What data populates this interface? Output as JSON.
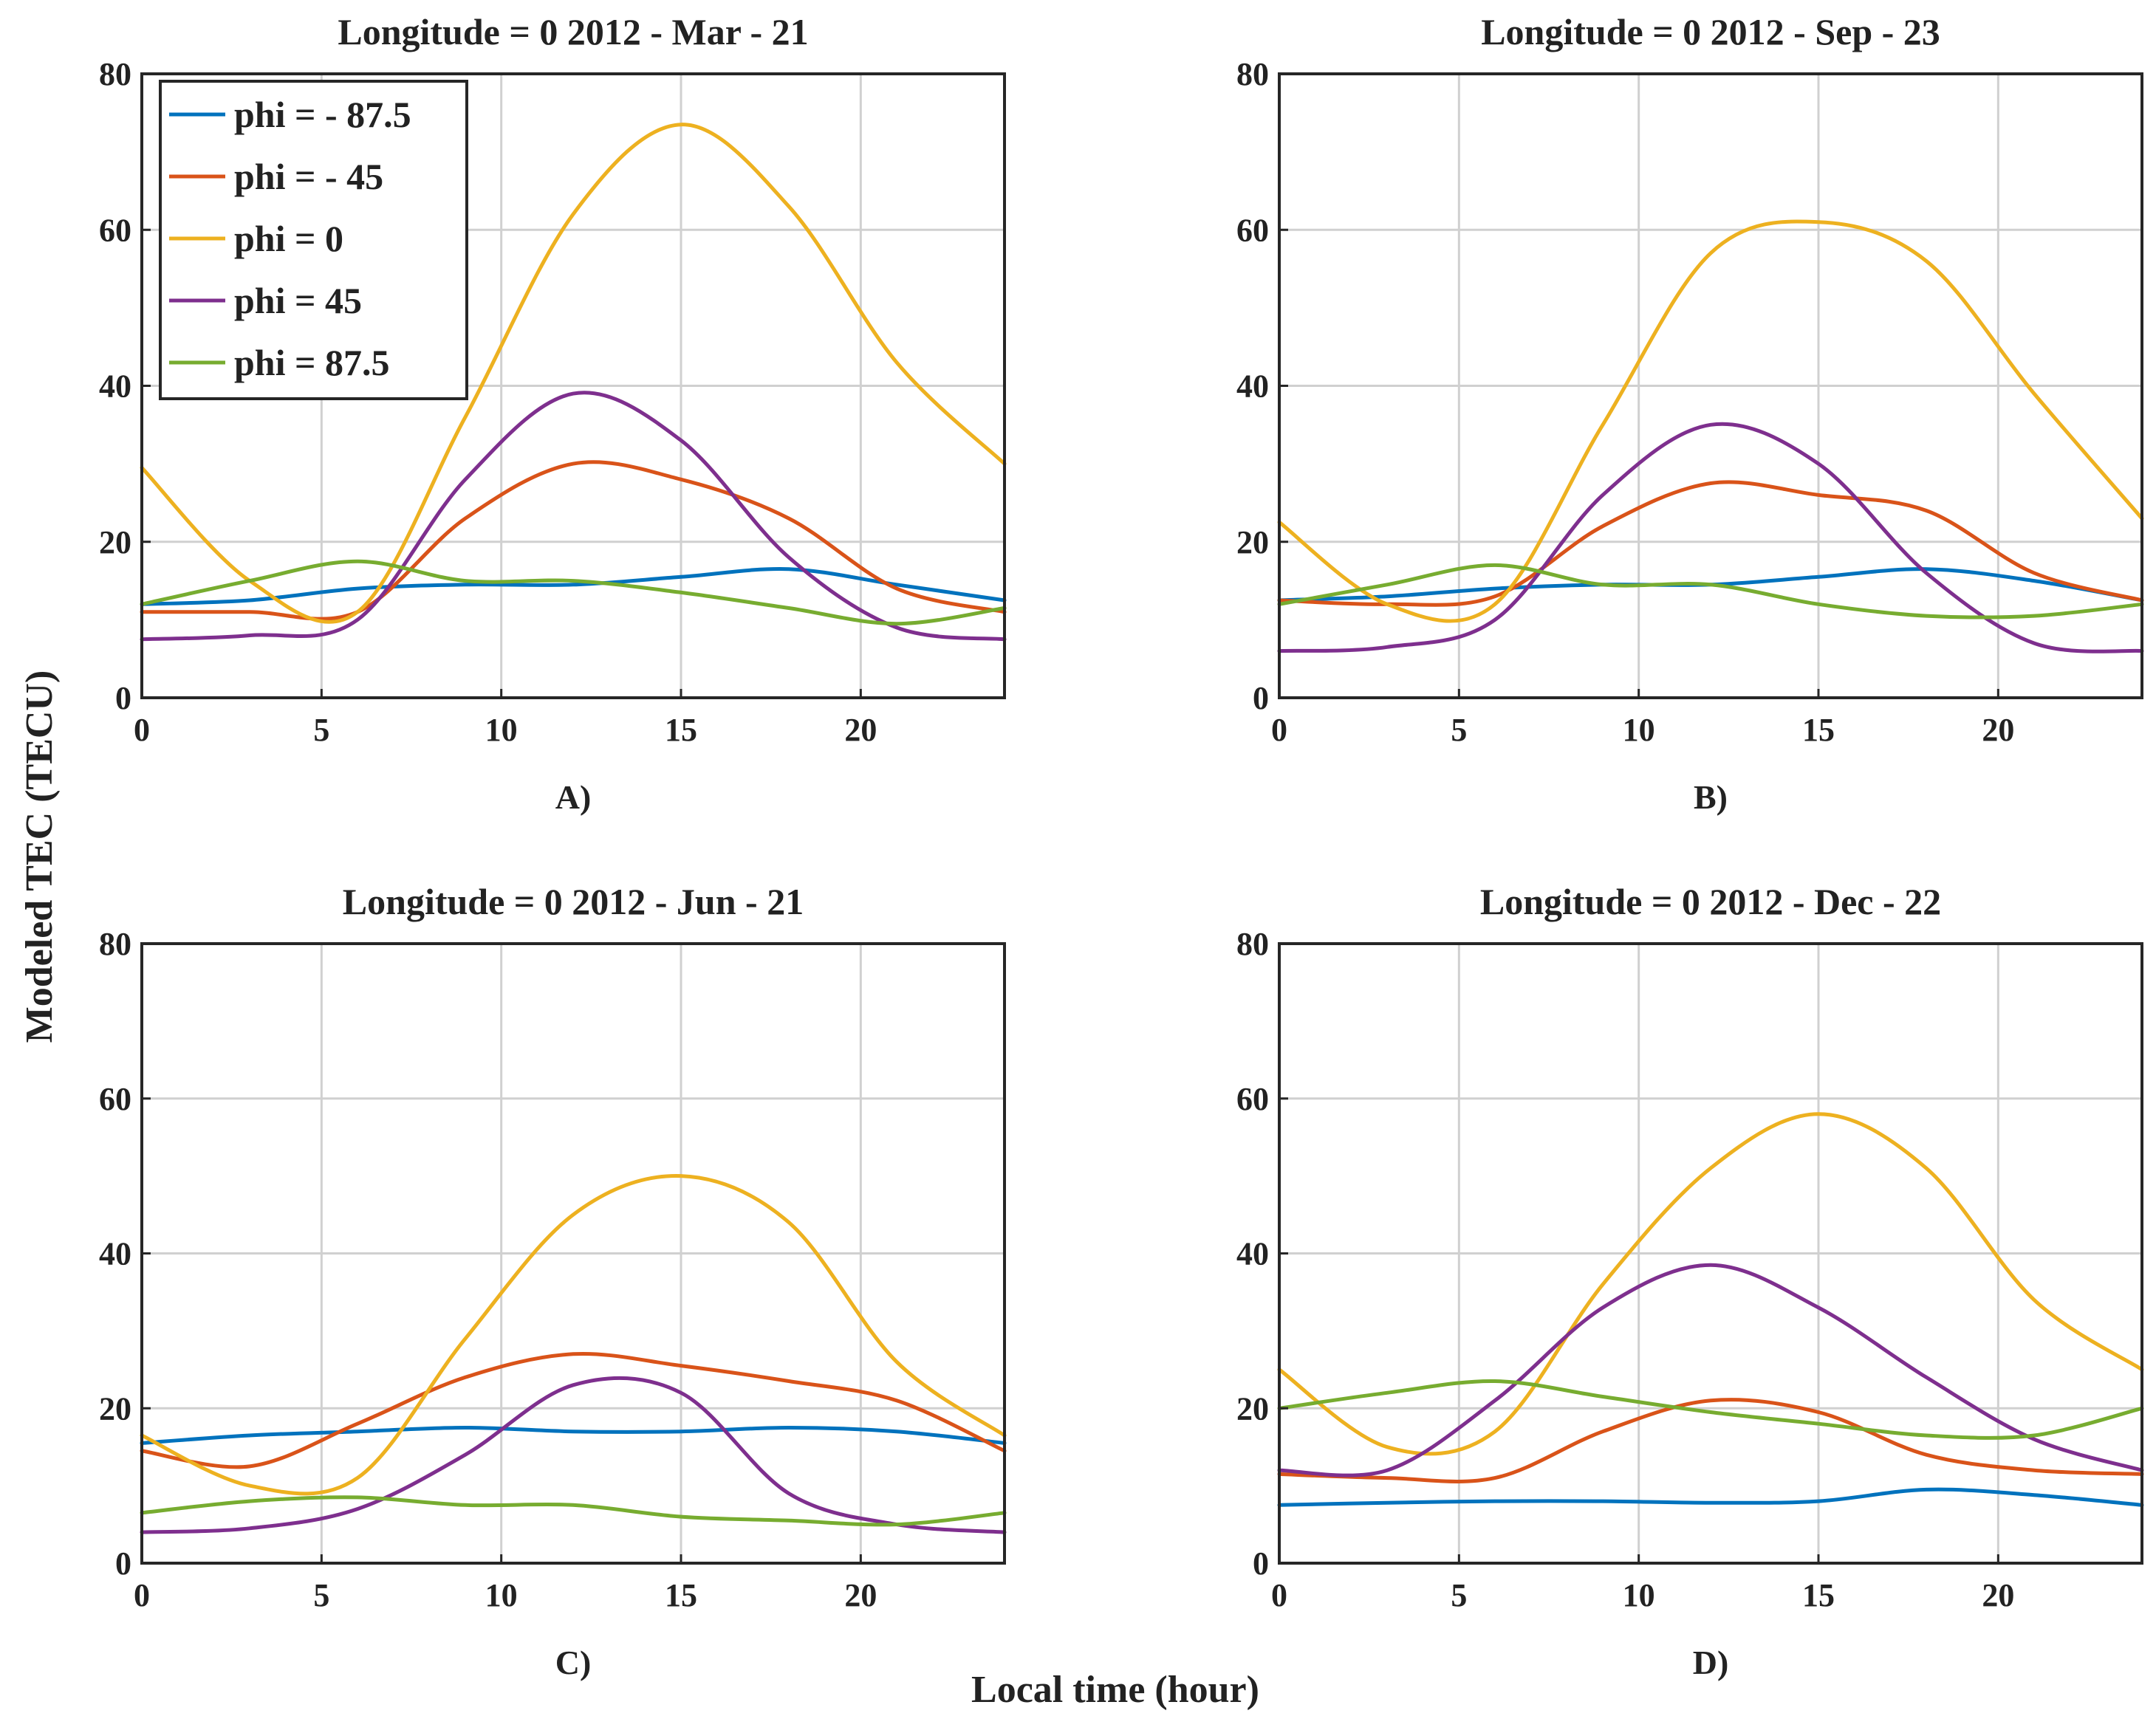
{
  "figure": {
    "ylabel": "Modeled TEC (TECU)",
    "xlabel": "Local time (hour)"
  },
  "legend": [
    {
      "name": "phi = - 87.5",
      "color": "#0072BD"
    },
    {
      "name": "phi = - 45",
      "color": "#D95319"
    },
    {
      "name": "phi = 0",
      "color": "#EDB120"
    },
    {
      "name": "phi = 45",
      "color": "#7E2F8E"
    },
    {
      "name": "phi = 87.5",
      "color": "#77AC30"
    }
  ],
  "chart_data": [
    {
      "type": "line",
      "panel": "A)",
      "title": "Longitude = 0   2012 - Mar - 21",
      "x": [
        0,
        3,
        6,
        9,
        12,
        15,
        18,
        21,
        24
      ],
      "xlim": [
        0,
        24
      ],
      "ylim": [
        0,
        80
      ],
      "xticks": [
        0,
        5,
        10,
        15,
        20
      ],
      "yticks": [
        0,
        20,
        40,
        60,
        80
      ],
      "grid": true,
      "legend_position": "top-left",
      "series": [
        {
          "name": "phi = - 87.5",
          "values": [
            12,
            12.5,
            14,
            14.5,
            14.5,
            15.5,
            16.5,
            14.5,
            12.5
          ]
        },
        {
          "name": "phi = - 45",
          "values": [
            11,
            11,
            11,
            23,
            30,
            28,
            23,
            14,
            11
          ]
        },
        {
          "name": "phi = 0",
          "values": [
            29.5,
            15,
            11,
            36,
            62,
            73.5,
            63,
            43,
            30
          ]
        },
        {
          "name": "phi = 45",
          "values": [
            7.5,
            8,
            10,
            28,
            39,
            33,
            18,
            9,
            7.5
          ]
        },
        {
          "name": "phi = 87.5",
          "values": [
            12,
            15,
            17.5,
            15,
            15,
            13.5,
            11.5,
            9.5,
            11.5
          ]
        }
      ]
    },
    {
      "type": "line",
      "panel": "B)",
      "title": "Longitude = 0   2012 - Sep - 23",
      "x": [
        0,
        3,
        6,
        9,
        12,
        15,
        18,
        21,
        24
      ],
      "xlim": [
        0,
        24
      ],
      "ylim": [
        0,
        80
      ],
      "xticks": [
        0,
        5,
        10,
        15,
        20
      ],
      "yticks": [
        0,
        20,
        40,
        60,
        80
      ],
      "grid": true,
      "series": [
        {
          "name": "phi = - 87.5",
          "values": [
            12.5,
            13,
            14,
            14.5,
            14.5,
            15.5,
            16.5,
            15,
            12.5
          ]
        },
        {
          "name": "phi = - 45",
          "values": [
            12.5,
            12,
            13,
            22,
            27.5,
            26,
            24,
            16,
            12.5
          ]
        },
        {
          "name": "phi = 0",
          "values": [
            22.5,
            12,
            12,
            35,
            57,
            61,
            56,
            39,
            23
          ]
        },
        {
          "name": "phi = 45",
          "values": [
            6,
            6.5,
            10,
            26,
            35,
            30,
            16,
            7,
            6
          ]
        },
        {
          "name": "phi = 87.5",
          "values": [
            12,
            14.5,
            17,
            14.5,
            14.5,
            12,
            10.5,
            10.5,
            12
          ]
        }
      ]
    },
    {
      "type": "line",
      "panel": "C)",
      "title": "Longitude = 0   2012 - Jun - 21",
      "x": [
        0,
        3,
        6,
        9,
        12,
        15,
        18,
        21,
        24
      ],
      "xlim": [
        0,
        24
      ],
      "ylim": [
        0,
        80
      ],
      "xticks": [
        0,
        5,
        10,
        15,
        20
      ],
      "yticks": [
        0,
        20,
        40,
        60,
        80
      ],
      "grid": true,
      "series": [
        {
          "name": "phi = - 87.5",
          "values": [
            15.5,
            16.5,
            17,
            17.5,
            17,
            17,
            17.5,
            17,
            15.5
          ]
        },
        {
          "name": "phi = - 45",
          "values": [
            14.5,
            12.5,
            18,
            24,
            27,
            25.5,
            23.5,
            21,
            14.5
          ]
        },
        {
          "name": "phi = 0",
          "values": [
            16.5,
            10,
            11,
            29,
            45,
            50,
            44,
            26,
            16.5
          ]
        },
        {
          "name": "phi = 45",
          "values": [
            4,
            4.5,
            7,
            14,
            23,
            22,
            9,
            5,
            4
          ]
        },
        {
          "name": "phi = 87.5",
          "values": [
            6.5,
            8,
            8.5,
            7.5,
            7.5,
            6,
            5.5,
            5,
            6.5
          ]
        }
      ]
    },
    {
      "type": "line",
      "panel": "D)",
      "title": "Longitude = 0   2012 - Dec - 22",
      "x": [
        0,
        3,
        6,
        9,
        12,
        15,
        18,
        21,
        24
      ],
      "xlim": [
        0,
        24
      ],
      "ylim": [
        0,
        80
      ],
      "xticks": [
        0,
        5,
        10,
        15,
        20
      ],
      "yticks": [
        0,
        20,
        40,
        60,
        80
      ],
      "grid": true,
      "series": [
        {
          "name": "phi = - 87.5",
          "values": [
            7.5,
            7.8,
            8,
            8,
            7.8,
            8,
            9.5,
            8.8,
            7.5
          ]
        },
        {
          "name": "phi = - 45",
          "values": [
            11.5,
            11,
            11,
            17,
            21,
            19.5,
            14,
            12,
            11.5
          ]
        },
        {
          "name": "phi = 0",
          "values": [
            25,
            15,
            17,
            36,
            51,
            58,
            51,
            34,
            25
          ]
        },
        {
          "name": "phi = 45",
          "values": [
            12,
            12,
            21,
            33,
            38.5,
            33,
            24,
            16,
            12
          ]
        },
        {
          "name": "phi = 87.5",
          "values": [
            20,
            22,
            23.5,
            21.5,
            19.5,
            18,
            16.5,
            16.5,
            20
          ]
        }
      ]
    }
  ]
}
